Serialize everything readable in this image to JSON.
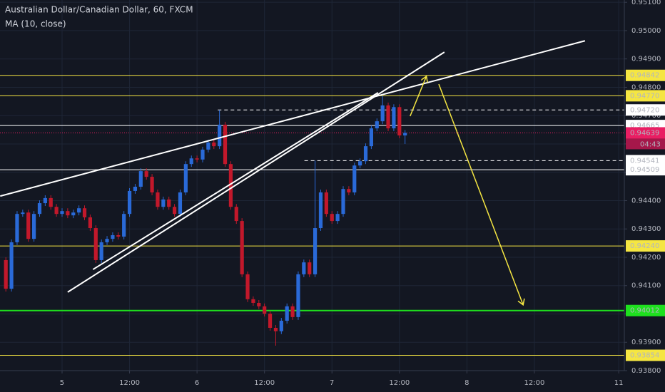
{
  "chart_data": {
    "type": "candlestick",
    "title": "Australian Dollar/Canadian Dollar, 60, FXCM",
    "indicator": "MA (10, close)",
    "xlim": [
      -11.04,
      100.0
    ],
    "xticks": [
      {
        "value": 0,
        "label": "5"
      },
      {
        "value": 12,
        "label": "12:00"
      },
      {
        "value": 24,
        "label": "6"
      },
      {
        "value": 36,
        "label": "12:00"
      },
      {
        "value": 48,
        "label": "7"
      },
      {
        "value": 60,
        "label": "12:00"
      },
      {
        "value": 72,
        "label": "8"
      },
      {
        "value": 84,
        "label": "12:00"
      },
      {
        "value": 99,
        "label": "11"
      }
    ],
    "ylim": [
      0.938,
      0.95108
    ],
    "yticks": [
      {
        "value": 0.938,
        "label": "0.93800"
      },
      {
        "value": 0.939,
        "label": "0.93900"
      },
      {
        "value": 0.94,
        "label": "0.94000"
      },
      {
        "value": 0.941,
        "label": "0.94100"
      },
      {
        "value": 0.942,
        "label": "0.94200"
      },
      {
        "value": 0.943,
        "label": "0.94300"
      },
      {
        "value": 0.944,
        "label": "0.94400"
      },
      {
        "value": 0.945,
        "label": "0.94500"
      },
      {
        "value": 0.946,
        "label": "0.94600"
      },
      {
        "value": 0.947,
        "label": "0.94700"
      },
      {
        "value": 0.948,
        "label": "0.94800"
      },
      {
        "value": 0.949,
        "label": "0.94900"
      },
      {
        "value": 0.95,
        "label": "0.95000"
      },
      {
        "value": 0.951,
        "label": "0.95100"
      }
    ],
    "grid": true,
    "up_color": "#2a6ad8",
    "down_color": "#c2182b",
    "candles": {
      "x": [
        -10,
        -9,
        -8,
        -7,
        -6,
        -5,
        -4,
        -3,
        -2,
        -1,
        0,
        1,
        2,
        3,
        4,
        5,
        6,
        7,
        8,
        9,
        10,
        11,
        12,
        13,
        14,
        15,
        16,
        17,
        18,
        19,
        20,
        21,
        22,
        23,
        24,
        25,
        26,
        27,
        28,
        29,
        30,
        31,
        32,
        33,
        34,
        35,
        36,
        37,
        38,
        39,
        40,
        41,
        42,
        43,
        44,
        45,
        46,
        47,
        48,
        49,
        50,
        51,
        52,
        53,
        54,
        55,
        56,
        57,
        58,
        59,
        60,
        61
      ],
      "open": [
        0.9419,
        0.94089,
        0.94253,
        0.94353,
        0.94358,
        0.94265,
        0.94353,
        0.94391,
        0.94409,
        0.94378,
        0.94353,
        0.94363,
        0.94348,
        0.94358,
        0.94373,
        0.94341,
        0.94303,
        0.9419,
        0.94253,
        0.94265,
        0.94278,
        0.94273,
        0.94353,
        0.94434,
        0.94449,
        0.94504,
        0.94484,
        0.94429,
        0.94378,
        0.94404,
        0.94378,
        0.94353,
        0.94429,
        0.94529,
        0.94549,
        0.94545,
        0.9458,
        0.94605,
        0.94592,
        0.94668,
        0.94529,
        0.94378,
        0.94328,
        0.9414,
        0.94052,
        0.94039,
        0.94027,
        0.94001,
        0.93951,
        0.93939,
        0.93976,
        0.94027,
        0.93989,
        0.9414,
        0.94182,
        0.9414,
        0.94303,
        0.94429,
        0.94353,
        0.94328,
        0.94353,
        0.94441,
        0.94429,
        0.94524,
        0.94539,
        0.94592,
        0.94655,
        0.9468,
        0.94736,
        0.94655,
        0.9473,
        0.9463
      ],
      "high": [
        0.942,
        0.94263,
        0.94363,
        0.94368,
        0.94368,
        0.94363,
        0.94401,
        0.94419,
        0.94419,
        0.94388,
        0.94373,
        0.94373,
        0.94368,
        0.94383,
        0.94383,
        0.94351,
        0.94313,
        0.94263,
        0.94275,
        0.94288,
        0.94288,
        0.94363,
        0.94444,
        0.94459,
        0.94514,
        0.94514,
        0.94494,
        0.94439,
        0.94414,
        0.94414,
        0.94388,
        0.94439,
        0.94539,
        0.94559,
        0.94559,
        0.9459,
        0.94615,
        0.94615,
        0.9472,
        0.94678,
        0.94539,
        0.94388,
        0.94338,
        0.9415,
        0.94062,
        0.94049,
        0.94037,
        0.94011,
        0.93961,
        0.93986,
        0.94037,
        0.94037,
        0.9415,
        0.94192,
        0.94192,
        0.94541,
        0.94439,
        0.94439,
        0.94363,
        0.94363,
        0.94451,
        0.94451,
        0.94534,
        0.94549,
        0.94602,
        0.94665,
        0.9469,
        0.9477,
        0.94746,
        0.9474,
        0.9474,
        0.94649
      ],
      "low": [
        0.94079,
        0.94079,
        0.94243,
        0.94343,
        0.94255,
        0.94255,
        0.94343,
        0.94381,
        0.94368,
        0.94343,
        0.94343,
        0.94338,
        0.94338,
        0.94348,
        0.94331,
        0.94293,
        0.9418,
        0.9418,
        0.94243,
        0.94255,
        0.94263,
        0.94263,
        0.94343,
        0.94424,
        0.94439,
        0.94474,
        0.94419,
        0.94368,
        0.94368,
        0.94368,
        0.94343,
        0.94343,
        0.94419,
        0.94519,
        0.94535,
        0.94535,
        0.9457,
        0.94582,
        0.94582,
        0.94519,
        0.94368,
        0.94318,
        0.9413,
        0.94042,
        0.94029,
        0.94017,
        0.93991,
        0.93941,
        0.93888,
        0.93929,
        0.93966,
        0.93979,
        0.93979,
        0.9413,
        0.9413,
        0.9413,
        0.94293,
        0.94343,
        0.94318,
        0.94318,
        0.94343,
        0.94419,
        0.94419,
        0.94514,
        0.94529,
        0.94582,
        0.94645,
        0.9467,
        0.94645,
        0.94645,
        0.9462,
        0.946
      ],
      "close": [
        0.94089,
        0.94253,
        0.94353,
        0.94358,
        0.94265,
        0.94353,
        0.94391,
        0.94409,
        0.94378,
        0.94353,
        0.94363,
        0.94348,
        0.94358,
        0.94373,
        0.94341,
        0.94303,
        0.9419,
        0.94253,
        0.94265,
        0.94278,
        0.94273,
        0.94353,
        0.94434,
        0.94449,
        0.94504,
        0.94484,
        0.94429,
        0.94378,
        0.94404,
        0.94378,
        0.94353,
        0.94429,
        0.94529,
        0.94549,
        0.94545,
        0.9458,
        0.94605,
        0.94592,
        0.94668,
        0.94529,
        0.94378,
        0.94328,
        0.9414,
        0.94052,
        0.94039,
        0.94027,
        0.94001,
        0.93951,
        0.93939,
        0.93976,
        0.94027,
        0.93989,
        0.9414,
        0.94182,
        0.9414,
        0.94303,
        0.94429,
        0.94353,
        0.94328,
        0.94353,
        0.94441,
        0.94429,
        0.94524,
        0.94539,
        0.94592,
        0.94655,
        0.9468,
        0.94736,
        0.94655,
        0.9473,
        0.9463,
        0.94639
      ]
    },
    "levels": [
      {
        "value": 0.94842,
        "label": "0.94842",
        "color": "#f5e642",
        "text_color": "#131722",
        "dashed": false
      },
      {
        "value": 0.9477,
        "label": "0.94770",
        "color": "#f5e642",
        "text_color": "#131722",
        "dashed": false
      },
      {
        "value": 0.9472,
        "label": "0.94720",
        "color": "#ffffff",
        "text_color": "#131722",
        "dashed": true,
        "start": 27.7
      },
      {
        "value": 0.94665,
        "label": "0.94665",
        "color": "#ffffff",
        "text_color": "#131722",
        "dashed": false
      },
      {
        "value": 0.94541,
        "label": "0.94541",
        "color": "#ffffff",
        "text_color": "#131722",
        "dashed": true,
        "start": 43.1
      },
      {
        "value": 0.94509,
        "label": "0.94509",
        "color": "#ffffff",
        "text_color": "#131722",
        "dashed": false
      },
      {
        "value": 0.9424,
        "label": "0.94240",
        "color": "#f5e642",
        "text_color": "#131722",
        "dashed": false
      },
      {
        "value": 0.94012,
        "label": "0.94012",
        "color": "#1ee01e",
        "text_color": "#131722",
        "dashed": false
      },
      {
        "value": 0.93854,
        "label": "0.93854",
        "color": "#f5e642",
        "text_color": "#131722",
        "dashed": false
      },
      {
        "value": 0.94639,
        "label": "0.94639",
        "color": "#e91e63",
        "text_color": "#ffffff",
        "dashed": true,
        "countdown": "04:43"
      }
    ],
    "trend_lines": [
      {
        "x": [
          -11,
          93
        ],
        "y": [
          0.94416,
          0.94964
        ],
        "color": "#ffffff"
      },
      {
        "x": [
          1,
          68
        ],
        "y": [
          0.94077,
          0.94924
        ],
        "color": "#ffffff"
      },
      {
        "x": [
          5.5,
          56.2
        ],
        "y": [
          0.94157,
          0.94781
        ],
        "color": "#ffffff"
      }
    ],
    "arrows": [
      {
        "x": [
          61.9,
          64.8
        ],
        "y": [
          0.94698,
          0.94839
        ],
        "color": "#f5e642"
      },
      {
        "x": [
          67,
          82
        ],
        "y": [
          0.94811,
          0.94032
        ],
        "color": "#f5e642"
      }
    ]
  }
}
